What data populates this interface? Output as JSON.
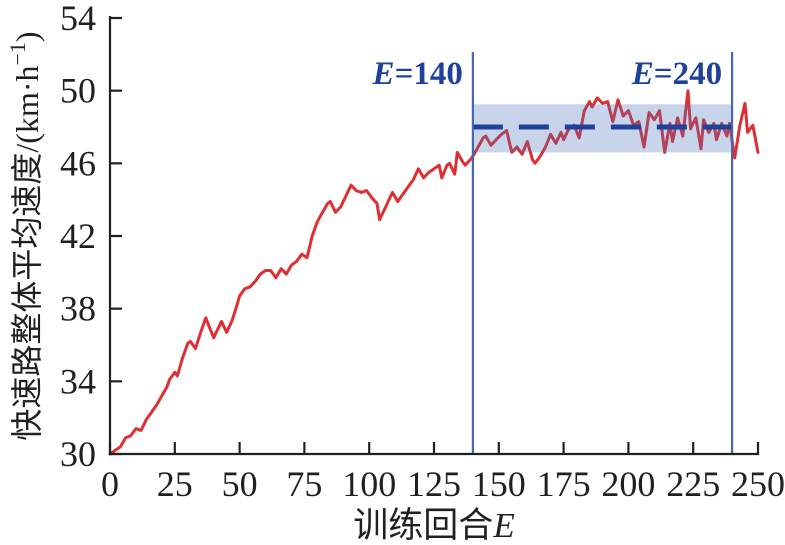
{
  "figure": {
    "background": "#ffffff",
    "axis_color": "#231f20",
    "line_color": "#de2f32",
    "vline_color": "#4468ad",
    "mean_line_color": "#1f419b",
    "annotation_color": "#1f419b",
    "band_fill": "rgba(74,111,181,0.30)"
  },
  "chart_data": {
    "type": "line",
    "title": "",
    "xlabel_main": "训练回合",
    "xlabel_var": "E",
    "ylabel_main": "快速路整体平均速度/(km·h",
    "ylabel_sup": "−1",
    "ylabel_end": ")",
    "xlim": [
      0,
      250
    ],
    "ylim": [
      30,
      54
    ],
    "x_ticks": [
      0,
      25,
      50,
      75,
      100,
      125,
      150,
      175,
      200,
      225,
      250
    ],
    "y_ticks": [
      30,
      34,
      38,
      42,
      46,
      50,
      54
    ],
    "grid": false,
    "legend": "none",
    "series": [
      {
        "name": "expressway-average-speed",
        "color": "#de2f32",
        "x": [
          0,
          2,
          4,
          6,
          8,
          10,
          12,
          14,
          16,
          18,
          20,
          22,
          23,
          25,
          26,
          28,
          30,
          31,
          33,
          35,
          37,
          38,
          40,
          42,
          43,
          45,
          47,
          49,
          50,
          52,
          54,
          56,
          58,
          60,
          62,
          64,
          66,
          68,
          70,
          72,
          74,
          76,
          78,
          80,
          82,
          84,
          85,
          87,
          89,
          91,
          93,
          95,
          97,
          99,
          101,
          103,
          104,
          106,
          108,
          109,
          111,
          113,
          115,
          117,
          119,
          121,
          123,
          125,
          127,
          128,
          130,
          131,
          133,
          134,
          136,
          137,
          139,
          140,
          142,
          144,
          145,
          147,
          149,
          151,
          153,
          155,
          157,
          159,
          161,
          163,
          164,
          166,
          168,
          170,
          172,
          174,
          175,
          177,
          179,
          181,
          183,
          185,
          186,
          188,
          190,
          192,
          194,
          196,
          198,
          200,
          202,
          204,
          206,
          208,
          210,
          212,
          214,
          216,
          217,
          219,
          221,
          223,
          224,
          226,
          228,
          229,
          231,
          233,
          234,
          236,
          238,
          239,
          241,
          243,
          245,
          246,
          248,
          250
        ],
        "y": [
          30,
          30.2,
          30.4,
          30.9,
          31,
          31.4,
          31.3,
          31.9,
          32.3,
          32.7,
          33.2,
          33.7,
          34.1,
          34.5,
          34.3,
          35.3,
          36.1,
          36.2,
          35.8,
          36.7,
          37.5,
          37.1,
          36.4,
          37,
          37.3,
          36.7,
          37.3,
          38.2,
          38.7,
          39.1,
          39.2,
          39.5,
          39.9,
          40.1,
          40.1,
          39.7,
          40.2,
          39.9,
          40.4,
          40.6,
          41,
          40.8,
          42,
          42.8,
          43.3,
          43.8,
          43.9,
          43.3,
          43.6,
          44.2,
          44.8,
          44.5,
          44.4,
          44.5,
          44.1,
          43.8,
          42.9,
          43.5,
          44.1,
          44.4,
          43.9,
          44.3,
          44.7,
          45.1,
          45.7,
          45.2,
          45.5,
          45.7,
          45.9,
          45.2,
          45.9,
          46,
          45.4,
          46.6,
          46.1,
          45.9,
          46.2,
          46.4,
          46.9,
          47.4,
          47.5,
          47,
          47.3,
          47.6,
          47.8,
          46.6,
          46.9,
          46.5,
          47.2,
          46.2,
          46,
          46.4,
          46.9,
          47.6,
          47.1,
          47.7,
          47.3,
          47.9,
          48.1,
          47.4,
          48.9,
          49.4,
          49.1,
          49.6,
          49.3,
          49.4,
          48.3,
          49.5,
          48.6,
          48.9,
          48.1,
          48.3,
          46.9,
          48.8,
          48.4,
          48.9,
          46.6,
          48.2,
          47.2,
          48.5,
          47.5,
          50,
          47.9,
          48.5,
          46.8,
          48.4,
          47.7,
          48.2,
          47.3,
          48.2,
          47.5,
          48.2,
          46.3,
          48.1,
          49.3,
          47.7,
          48.1,
          46.6
        ]
      }
    ],
    "mean_line": {
      "value": 48.0,
      "x_start": 140,
      "x_end": 240
    },
    "band": {
      "x_start": 140,
      "x_end": 240,
      "y_bottom": 46.6,
      "y_top": 49.25
    },
    "vlines": [
      {
        "x": 140,
        "label_var": "E",
        "label_rest": "=140"
      },
      {
        "x": 240,
        "label_var": "E",
        "label_rest": "=240"
      }
    ]
  }
}
